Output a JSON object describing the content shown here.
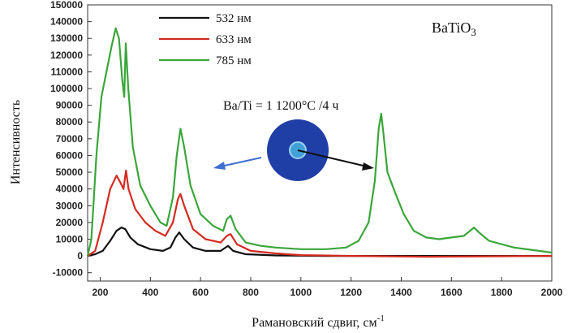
{
  "chart_data": {
    "type": "line",
    "xlabel": "Рамановский сдвиг, см",
    "xlabel_sup": "-1",
    "ylabel": "Интенсивность",
    "xlim": [
      150,
      2000
    ],
    "ylim": [
      -15000,
      150000
    ],
    "x_ticks": [
      200,
      400,
      600,
      800,
      1000,
      1200,
      1400,
      1600,
      1800,
      2000
    ],
    "y_ticks": [
      -10000,
      0,
      10000,
      20000,
      30000,
      40000,
      50000,
      60000,
      70000,
      80000,
      90000,
      100000,
      110000,
      120000,
      130000,
      140000,
      150000
    ],
    "grid": false,
    "legend_position": "top-center",
    "sample_label": "BaTiO",
    "sample_label_sub": "3",
    "annotation": "Ba/Ti = 1 1200°C /4 ч",
    "series": [
      {
        "name": "532 нм",
        "color": "#111111",
        "points": [
          [
            150,
            0
          ],
          [
            180,
            1000
          ],
          [
            210,
            3000
          ],
          [
            240,
            9000
          ],
          [
            265,
            15000
          ],
          [
            285,
            17000
          ],
          [
            300,
            16000
          ],
          [
            320,
            11000
          ],
          [
            350,
            7000
          ],
          [
            400,
            4000
          ],
          [
            450,
            3000
          ],
          [
            480,
            5000
          ],
          [
            500,
            11000
          ],
          [
            515,
            14000
          ],
          [
            535,
            10000
          ],
          [
            570,
            5000
          ],
          [
            620,
            3000
          ],
          [
            680,
            3000
          ],
          [
            710,
            6000
          ],
          [
            730,
            3000
          ],
          [
            780,
            1000
          ],
          [
            900,
            300
          ],
          [
            1100,
            0
          ],
          [
            1400,
            0
          ],
          [
            2000,
            0
          ]
        ]
      },
      {
        "name": "633 нм",
        "color": "#d42a20",
        "points": [
          [
            150,
            0
          ],
          [
            180,
            3000
          ],
          [
            210,
            20000
          ],
          [
            240,
            40000
          ],
          [
            265,
            48000
          ],
          [
            280,
            44000
          ],
          [
            293,
            40000
          ],
          [
            303,
            51000
          ],
          [
            313,
            40000
          ],
          [
            340,
            28000
          ],
          [
            380,
            20000
          ],
          [
            420,
            15000
          ],
          [
            460,
            12000
          ],
          [
            490,
            20000
          ],
          [
            510,
            34000
          ],
          [
            520,
            37000
          ],
          [
            535,
            30000
          ],
          [
            570,
            16000
          ],
          [
            620,
            10000
          ],
          [
            680,
            8000
          ],
          [
            705,
            12000
          ],
          [
            720,
            13000
          ],
          [
            745,
            7000
          ],
          [
            800,
            3000
          ],
          [
            900,
            1500
          ],
          [
            1000,
            500
          ],
          [
            1200,
            0
          ],
          [
            1500,
            -500
          ],
          [
            2000,
            0
          ]
        ]
      },
      {
        "name": "785 нм",
        "color": "#3aa63a",
        "points": [
          [
            150,
            0
          ],
          [
            165,
            10000
          ],
          [
            185,
            60000
          ],
          [
            205,
            95000
          ],
          [
            225,
            110000
          ],
          [
            245,
            125000
          ],
          [
            262,
            136000
          ],
          [
            275,
            130000
          ],
          [
            288,
            105000
          ],
          [
            296,
            95000
          ],
          [
            302,
            127000
          ],
          [
            312,
            100000
          ],
          [
            330,
            65000
          ],
          [
            360,
            42000
          ],
          [
            400,
            30000
          ],
          [
            440,
            20000
          ],
          [
            465,
            18000
          ],
          [
            490,
            35000
          ],
          [
            505,
            60000
          ],
          [
            520,
            76000
          ],
          [
            535,
            65000
          ],
          [
            560,
            42000
          ],
          [
            600,
            25000
          ],
          [
            650,
            18000
          ],
          [
            690,
            15000
          ],
          [
            705,
            22000
          ],
          [
            720,
            24000
          ],
          [
            740,
            16000
          ],
          [
            780,
            8000
          ],
          [
            840,
            6000
          ],
          [
            900,
            5000
          ],
          [
            1000,
            4000
          ],
          [
            1100,
            4000
          ],
          [
            1180,
            5000
          ],
          [
            1230,
            9000
          ],
          [
            1270,
            20000
          ],
          [
            1295,
            45000
          ],
          [
            1310,
            76000
          ],
          [
            1320,
            85000
          ],
          [
            1330,
            72000
          ],
          [
            1345,
            50000
          ],
          [
            1375,
            38000
          ],
          [
            1410,
            25000
          ],
          [
            1450,
            15000
          ],
          [
            1500,
            11000
          ],
          [
            1550,
            10000
          ],
          [
            1600,
            11000
          ],
          [
            1650,
            12000
          ],
          [
            1690,
            17000
          ],
          [
            1710,
            14000
          ],
          [
            1750,
            9000
          ],
          [
            1850,
            5000
          ],
          [
            1950,
            3000
          ],
          [
            2000,
            2000
          ]
        ]
      }
    ]
  }
}
